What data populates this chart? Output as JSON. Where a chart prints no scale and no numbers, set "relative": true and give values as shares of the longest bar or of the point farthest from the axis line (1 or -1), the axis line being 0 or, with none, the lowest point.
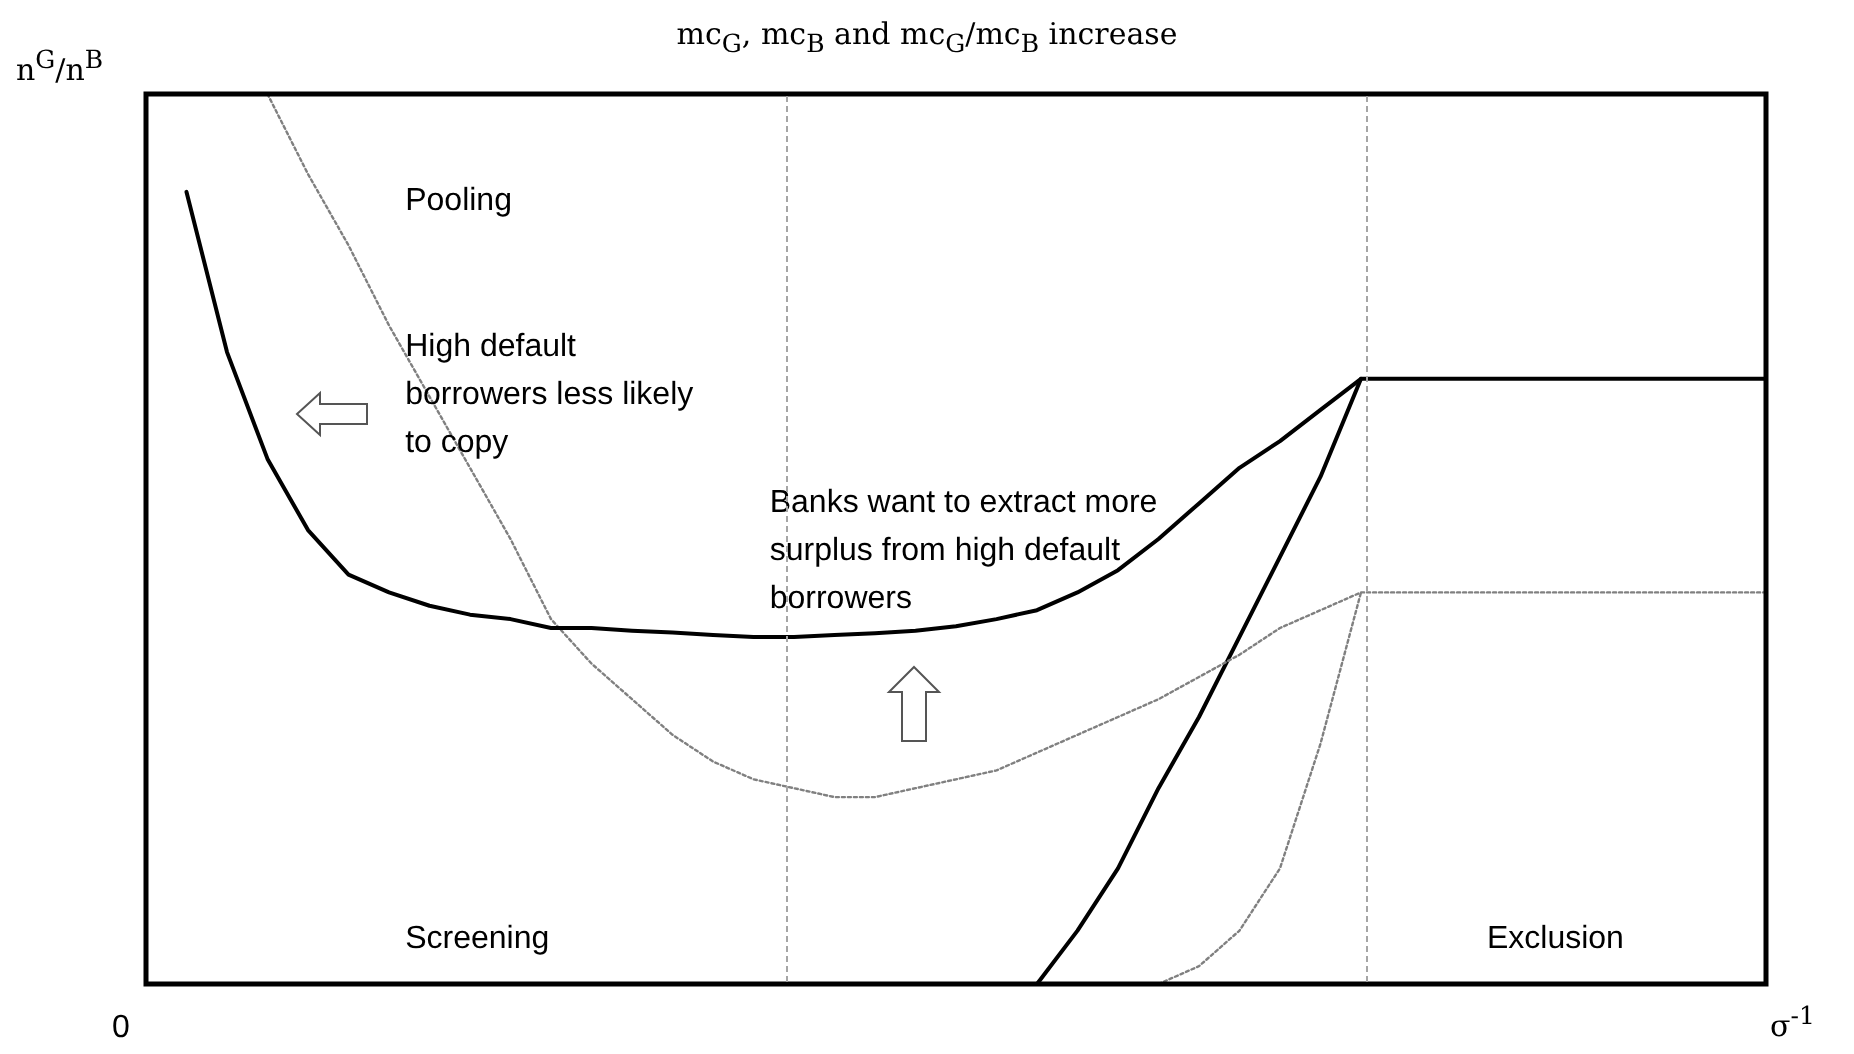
{
  "chart_data": {
    "type": "line",
    "title": "mc$_{G}$, mc$_{B}$ and mc$_{G}$/mc$_{B}$ increase",
    "xlabel": "σ$^{-1}$",
    "ylabel": "n$^{G}$/n$^{B}$",
    "relative": true,
    "legend": false,
    "grid": false,
    "marker": "none",
    "categories": [
      null,
      null,
      null,
      null,
      null,
      null,
      null,
      null,
      null,
      null,
      null,
      null,
      null,
      null,
      null,
      null,
      null,
      null,
      null,
      null,
      null,
      null,
      null,
      null,
      null,
      null,
      null,
      null,
      null,
      null,
      null,
      null,
      null,
      null,
      null,
      null,
      null,
      null,
      null,
      null,
      null
    ],
    "series": [
      {
        "color": "#000000",
        "line_style": "solid",
        "values": [
          null,
          0.89,
          0.71,
          0.59,
          0.51,
          0.46,
          0.44,
          0.425,
          0.415,
          0.41,
          0.4,
          0.4,
          0.397,
          0.395,
          0.392,
          0.39,
          0.39,
          0.392,
          0.394,
          0.397,
          0.402,
          0.41,
          0.42,
          0.44,
          0.465,
          0.5,
          0.54,
          0.58,
          0.61,
          0.645,
          0.68,
          0.68,
          0.68,
          0.68,
          0.68,
          0.68,
          0.68,
          0.68,
          0.68,
          0.68,
          0.68
        ]
      },
      {
        "color": "#808080",
        "line_style": "dotted",
        "values": [
          null,
          null,
          null,
          1.0,
          0.91,
          0.83,
          0.74,
          0.66,
          0.58,
          0.5,
          0.41,
          0.36,
          0.32,
          0.28,
          0.25,
          0.23,
          0.22,
          0.21,
          0.21,
          0.22,
          0.23,
          0.24,
          0.26,
          0.28,
          0.3,
          0.32,
          0.345,
          0.37,
          0.4,
          0.42,
          0.44,
          0.44,
          0.44,
          0.44,
          0.44,
          0.44,
          0.44,
          0.44,
          0.44,
          0.44,
          0.44
        ]
      },
      {
        "color": "#000000",
        "line_style": "solid",
        "values": [
          null,
          null,
          null,
          null,
          null,
          null,
          null,
          null,
          null,
          null,
          null,
          null,
          null,
          null,
          null,
          null,
          null,
          null,
          null,
          null,
          null,
          null,
          0,
          0.06,
          0.13,
          0.22,
          0.3,
          0.39,
          0.48,
          0.57,
          0.68,
          null,
          null,
          null,
          null,
          null,
          null,
          null,
          null,
          null,
          null
        ]
      },
      {
        "color": "#808080",
        "line_style": "dotted",
        "values": [
          null,
          null,
          null,
          null,
          null,
          null,
          null,
          null,
          null,
          null,
          null,
          null,
          null,
          null,
          null,
          null,
          null,
          null,
          null,
          null,
          null,
          null,
          null,
          null,
          null,
          0,
          0.02,
          0.06,
          0.13,
          0.27,
          0.44,
          null,
          null,
          null,
          null,
          null,
          null,
          null,
          null,
          null,
          null
        ]
      }
    ],
    "annotations": [
      "Pooling",
      "High default borrowers less likely to copy",
      "Banks want to extract more surplus from high default borrowers",
      "Screening",
      "Exclusion",
      "0"
    ]
  }
}
